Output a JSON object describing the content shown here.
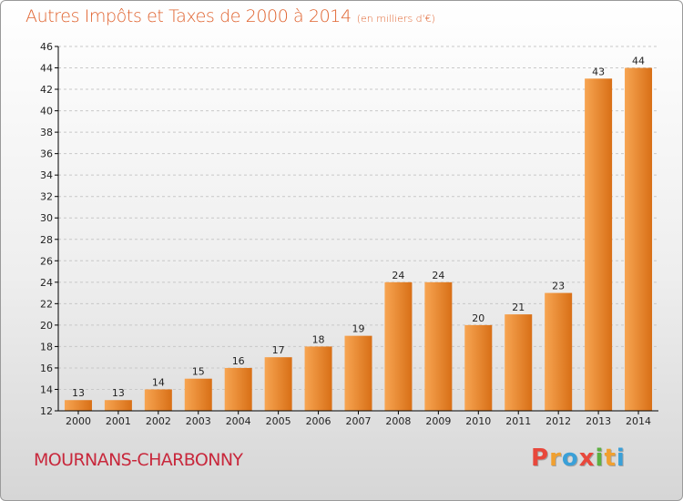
{
  "title": "Autres Impôts et Taxes de 2000 à 2014",
  "subtitle": "(en milliers d'€)",
  "commune": "MOURNANS-CHARBONNY",
  "brand": {
    "letters": [
      "P",
      "r",
      "o",
      "x",
      "i",
      "t",
      "i"
    ],
    "colors": [
      "#e8483c",
      "#f0a030",
      "#3aa0d8",
      "#e8483c",
      "#5cb040",
      "#f0a030",
      "#3aa0d8"
    ]
  },
  "colors": {
    "bar_light": "#f7a552",
    "bar_dark": "#d86f16",
    "axis": "#000000",
    "grid": "#c8c8c8"
  },
  "chart_data": {
    "type": "bar",
    "categories": [
      "2000",
      "2001",
      "2002",
      "2003",
      "2004",
      "2005",
      "2006",
      "2007",
      "2008",
      "2009",
      "2010",
      "2011",
      "2012",
      "2013",
      "2014"
    ],
    "values": [
      13,
      13,
      14,
      15,
      16,
      17,
      18,
      19,
      24,
      24,
      20,
      21,
      23,
      43,
      44
    ],
    "data_labels": [
      "13",
      "13",
      "14",
      "15",
      "16",
      "17",
      "18",
      "19",
      "24",
      "24",
      "20",
      "21",
      "23",
      "43",
      "44"
    ],
    "ylim": [
      12,
      46
    ],
    "yticks": [
      "12",
      "14",
      "16",
      "18",
      "20",
      "22",
      "24",
      "26",
      "28",
      "30",
      "32",
      "34",
      "36",
      "38",
      "40",
      "42",
      "44",
      "46"
    ],
    "grid": "horizontal-dashed"
  }
}
